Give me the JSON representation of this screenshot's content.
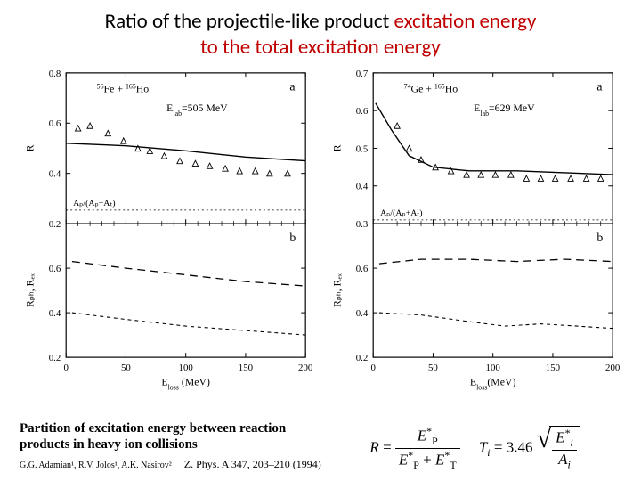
{
  "title": {
    "line1_a": "Ratio of the projectile-like product ",
    "line1_b": "excitation energy",
    "line2": "to the total excitation energy",
    "color_main": "#000000",
    "color_accent": "#c00000",
    "fontsize": 23
  },
  "chart_left": {
    "background_color": "#ffffff",
    "axis_color": "#000000",
    "line_color": "#000000",
    "marker_color": "#000000",
    "text_color": "#000000",
    "panel_a": {
      "label": "a",
      "reaction_pre": "56",
      "reaction_mid": "Fe + ",
      "reaction_pre2": "165",
      "reaction_post": "Ho",
      "energy_label": "E",
      "energy_sub": "lab",
      "energy_value": "=505 MeV",
      "ratio_formula": "Aₚ/(Aₚ+Aₜ)",
      "ylabel": "R",
      "ylim": [
        0.2,
        0.8
      ],
      "yticks": [
        0.2,
        0.4,
        0.6,
        0.8
      ],
      "ratio_line_y": 0.254,
      "solid_curve": [
        [
          0,
          0.52
        ],
        [
          50,
          0.51
        ],
        [
          100,
          0.49
        ],
        [
          150,
          0.465
        ],
        [
          200,
          0.45
        ]
      ],
      "markers": [
        [
          10,
          0.58
        ],
        [
          20,
          0.59
        ],
        [
          35,
          0.56
        ],
        [
          48,
          0.53
        ],
        [
          60,
          0.5
        ],
        [
          70,
          0.49
        ],
        [
          82,
          0.47
        ],
        [
          95,
          0.45
        ],
        [
          108,
          0.44
        ],
        [
          120,
          0.43
        ],
        [
          133,
          0.42
        ],
        [
          145,
          0.41
        ],
        [
          158,
          0.41
        ],
        [
          170,
          0.4
        ],
        [
          185,
          0.4
        ]
      ]
    },
    "panel_b": {
      "label": "b",
      "ylabel": "Rₚₕ,  Rₑₓ",
      "ylim": [
        0.2,
        0.8
      ],
      "yticks": [
        0.2,
        0.4,
        0.6
      ],
      "dash1": [
        [
          5,
          0.63
        ],
        [
          50,
          0.6
        ],
        [
          100,
          0.57
        ],
        [
          150,
          0.54
        ],
        [
          200,
          0.52
        ]
      ],
      "dash2": [
        [
          5,
          0.4
        ],
        [
          50,
          0.37
        ],
        [
          100,
          0.34
        ],
        [
          150,
          0.32
        ],
        [
          200,
          0.3
        ]
      ]
    },
    "xlabel": "E",
    "xlabel_sub": "loss",
    "xlabel_unit": " (MeV)",
    "xlim": [
      0,
      200
    ],
    "xticks": [
      0,
      50,
      100,
      150,
      200
    ],
    "fontsize_axis": 11,
    "fontsize_label": 12
  },
  "chart_right": {
    "background_color": "#ffffff",
    "axis_color": "#000000",
    "line_color": "#000000",
    "marker_color": "#000000",
    "text_color": "#000000",
    "panel_a": {
      "label": "a",
      "reaction_pre": "74",
      "reaction_mid": "Ge + ",
      "reaction_pre2": "165",
      "reaction_post": "Ho",
      "energy_label": "E",
      "energy_sub": "lab",
      "energy_value": "=629 MeV",
      "ratio_formula": "Aₚ/(Aₚ+Aₜ)",
      "ylabel": "R",
      "ylim": [
        0.3,
        0.7
      ],
      "yticks": [
        0.3,
        0.4,
        0.5,
        0.6,
        0.7
      ],
      "ratio_line_y": 0.31,
      "solid_curve": [
        [
          2,
          0.62
        ],
        [
          15,
          0.55
        ],
        [
          30,
          0.48
        ],
        [
          50,
          0.45
        ],
        [
          80,
          0.44
        ],
        [
          120,
          0.44
        ],
        [
          160,
          0.435
        ],
        [
          200,
          0.43
        ]
      ],
      "markers": [
        [
          20,
          0.56
        ],
        [
          30,
          0.5
        ],
        [
          40,
          0.47
        ],
        [
          52,
          0.45
        ],
        [
          65,
          0.44
        ],
        [
          78,
          0.43
        ],
        [
          90,
          0.43
        ],
        [
          102,
          0.43
        ],
        [
          115,
          0.43
        ],
        [
          128,
          0.42
        ],
        [
          140,
          0.42
        ],
        [
          152,
          0.42
        ],
        [
          165,
          0.42
        ],
        [
          178,
          0.42
        ],
        [
          190,
          0.42
        ]
      ]
    },
    "panel_b": {
      "label": "b",
      "ylabel": "Rₚₕ,  Rₑₓ",
      "ylim": [
        0.2,
        0.8
      ],
      "yticks": [
        0.2,
        0.4,
        0.6
      ],
      "dash1": [
        [
          5,
          0.62
        ],
        [
          40,
          0.64
        ],
        [
          80,
          0.64
        ],
        [
          120,
          0.63
        ],
        [
          160,
          0.64
        ],
        [
          200,
          0.63
        ]
      ],
      "dash2": [
        [
          5,
          0.4
        ],
        [
          40,
          0.39
        ],
        [
          80,
          0.36
        ],
        [
          110,
          0.34
        ],
        [
          140,
          0.35
        ],
        [
          170,
          0.34
        ],
        [
          200,
          0.33
        ]
      ]
    },
    "xlabel": "E",
    "xlabel_sub": "loss",
    "xlabel_unit": "(MeV)",
    "xlim": [
      0,
      200
    ],
    "xticks": [
      0,
      50,
      100,
      150,
      200
    ],
    "fontsize_axis": 11,
    "fontsize_label": 12
  },
  "reference": {
    "title": "Partition of excitation energy between reaction products in heavy ion collisions",
    "authors": "G.G. Adamian¹, R.V. Jolos¹, A.K. Nasirov²",
    "journal": "Z. Phys. A 347, 203–210 (1994)"
  },
  "formula": {
    "R": "R",
    "eq": " = ",
    "EP": "E",
    "star": "*",
    "P": "P",
    "plus": " + ",
    "ET": "E",
    "T": "T",
    "gap": "     ",
    "Ti": "T",
    "i": "i",
    "eqnum": " = 3.46 ",
    "Ei": "E",
    "Ai": "A"
  }
}
